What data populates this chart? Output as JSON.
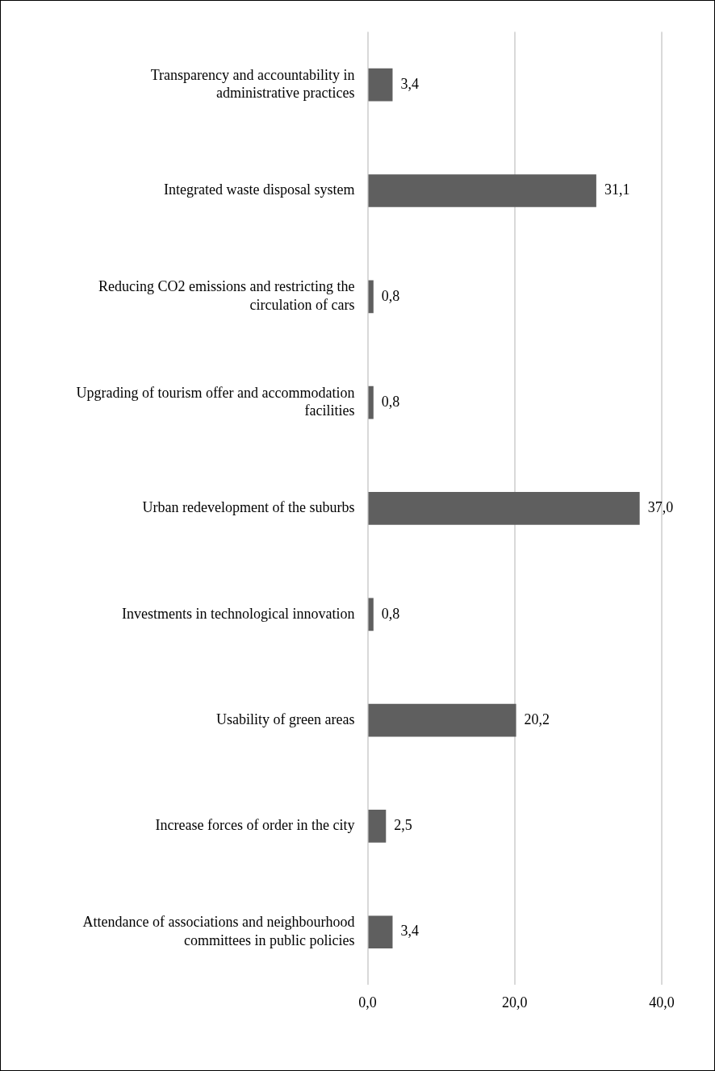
{
  "chart_data": {
    "type": "bar",
    "orientation": "horizontal",
    "categories": [
      "Transparency and accountability in administrative practices",
      "Integrated waste disposal system",
      "Reducing CO2 emissions and restricting the circulation of cars",
      "Upgrading of tourism offer and accommodation facilities",
      "Urban redevelopment of the suburbs",
      "Investments in technological innovation",
      "Usability of green areas",
      "Increase forces of order in the city",
      "Attendance of associations and neighbourhood committees in public policies"
    ],
    "values": [
      3.4,
      31.1,
      0.8,
      0.8,
      37.0,
      0.8,
      20.2,
      2.5,
      3.4
    ],
    "value_labels": [
      "3,4",
      "31,1",
      "0,8",
      "0,8",
      "37,0",
      "0,8",
      "20,2",
      "2,5",
      "3,4"
    ],
    "color": "#5f5f5f",
    "xlim": [
      0,
      40
    ],
    "xticks": [
      {
        "value": 0,
        "label": "0,0"
      },
      {
        "value": 20,
        "label": "20,0"
      },
      {
        "value": 40,
        "label": "40,0"
      }
    ],
    "grid": "x"
  }
}
